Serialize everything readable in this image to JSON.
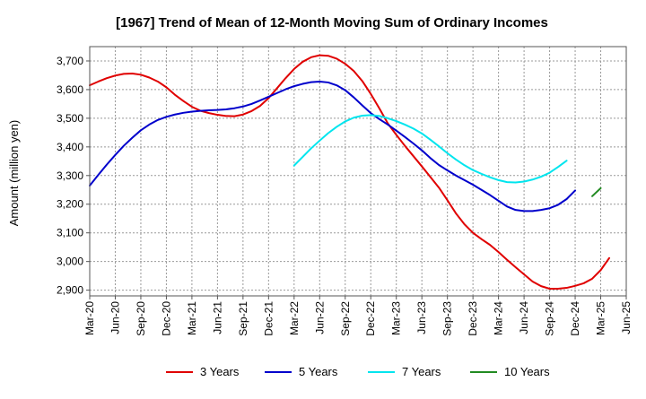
{
  "chart_data": {
    "type": "line",
    "title": "[1967]  Trend of Mean of 12-Month Moving Sum of Ordinary Incomes",
    "xlabel": "",
    "ylabel": "Amount (million yen)",
    "ylim": [
      2880,
      3750
    ],
    "yticks": [
      2900,
      3000,
      3100,
      3200,
      3300,
      3400,
      3500,
      3600,
      3700
    ],
    "ytick_labels": [
      "2,900",
      "3,000",
      "3,100",
      "3,200",
      "3,300",
      "3,400",
      "3,500",
      "3,600",
      "3,700"
    ],
    "x_tick_labels": [
      "Mar-20",
      "Jun-20",
      "Sep-20",
      "Dec-20",
      "Mar-21",
      "Jun-21",
      "Sep-21",
      "Dec-21",
      "Mar-22",
      "Jun-22",
      "Sep-22",
      "Dec-22",
      "Mar-23",
      "Jun-23",
      "Sep-23",
      "Dec-23",
      "Mar-24",
      "Jun-24",
      "Sep-24",
      "Dec-24",
      "Mar-25",
      "Jun-25"
    ],
    "grid": true,
    "legend_position": "bottom",
    "series": [
      {
        "name": "3 Years",
        "color": "#e00000",
        "start_index": 0,
        "values": [
          3615,
          3628,
          3640,
          3649,
          3655,
          3656,
          3652,
          3642,
          3628,
          3608,
          3582,
          3560,
          3540,
          3526,
          3518,
          3512,
          3508,
          3507,
          3513,
          3525,
          3543,
          3570,
          3605,
          3640,
          3672,
          3697,
          3713,
          3720,
          3718,
          3708,
          3690,
          3665,
          3630,
          3585,
          3535,
          3482,
          3442,
          3404,
          3368,
          3332,
          3295,
          3258,
          3214,
          3168,
          3130,
          3100,
          3078,
          3058,
          3033,
          3006,
          2980,
          2955,
          2930,
          2914,
          2905,
          2905,
          2908,
          2915,
          2924,
          2940,
          2970,
          3012
        ]
      },
      {
        "name": "5 Years",
        "color": "#0000cc",
        "start_index": 0,
        "values": [
          3265,
          3302,
          3338,
          3372,
          3404,
          3432,
          3458,
          3478,
          3494,
          3505,
          3513,
          3519,
          3523,
          3526,
          3528,
          3529,
          3531,
          3535,
          3541,
          3550,
          3562,
          3575,
          3588,
          3601,
          3612,
          3620,
          3626,
          3628,
          3625,
          3615,
          3598,
          3573,
          3545,
          3518,
          3497,
          3478,
          3457,
          3435,
          3412,
          3388,
          3361,
          3337,
          3318,
          3300,
          3284,
          3268,
          3250,
          3232,
          3212,
          3192,
          3180,
          3176,
          3176,
          3180,
          3186,
          3198,
          3218,
          3248
        ]
      },
      {
        "name": "7 Years",
        "color": "#00e5ee",
        "start_index": 24,
        "values": [
          3335,
          3365,
          3395,
          3422,
          3448,
          3470,
          3489,
          3502,
          3509,
          3511,
          3508,
          3500,
          3490,
          3478,
          3464,
          3447,
          3425,
          3402,
          3378,
          3356,
          3336,
          3319,
          3306,
          3294,
          3284,
          3277,
          3276,
          3279,
          3286,
          3296,
          3310,
          3330,
          3352
        ]
      },
      {
        "name": "10 Years",
        "color": "#228b22",
        "start_index": 59,
        "values": [
          3228,
          3256
        ]
      }
    ]
  }
}
